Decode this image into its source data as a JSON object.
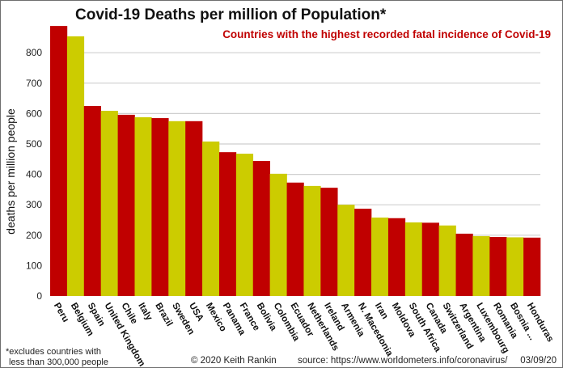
{
  "chart_data": {
    "type": "bar",
    "title": "Covid-19 Deaths per million of Population*",
    "subtitle": "Countries with the highest recorded fatal incidence of Covid-19",
    "xlabel": "",
    "ylabel": "deaths per million people",
    "ylim": [
      0,
      900
    ],
    "yticks": [
      0,
      100,
      200,
      300,
      400,
      500,
      600,
      700,
      800
    ],
    "grid": true,
    "legend": "none",
    "colors": {
      "odd": "#c00000",
      "even": "#cccc00"
    },
    "categories": [
      "Peru",
      "Belgium",
      "Spain",
      "United Kingdom",
      "Chile",
      "Italy",
      "Brazil",
      "Sweden",
      "USA",
      "Mexico",
      "Panama",
      "France",
      "Bolivia",
      "Colombia",
      "Ecuador",
      "Netherlands",
      "Ireland",
      "Armenia",
      "N. Macedonia",
      "Iran",
      "Moldova",
      "South Africa",
      "Canada",
      "Switzerland",
      "Argentina",
      "Luxembourg",
      "Romania",
      "Bosnia ...",
      "Honduras"
    ],
    "values": [
      888,
      854,
      625,
      609,
      596,
      588,
      585,
      575,
      575,
      508,
      473,
      468,
      444,
      402,
      373,
      362,
      356,
      300,
      287,
      258,
      256,
      242,
      241,
      232,
      205,
      197,
      194,
      193,
      192
    ]
  },
  "footer": {
    "note_line1": "*excludes countries with",
    "note_line2": "less than 300,000 people",
    "copyright": "© 2020  Keith Rankin",
    "source": "source: https://www.worldometers.info/coronavirus/",
    "date": "03/09/20"
  }
}
